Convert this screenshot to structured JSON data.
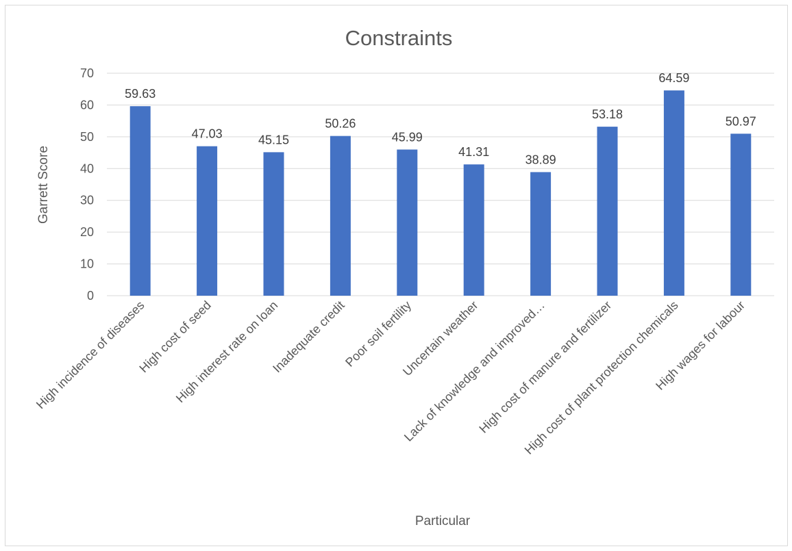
{
  "chart_data": {
    "type": "bar",
    "title": "Constraints",
    "xlabel": "Particular",
    "ylabel": "Garrett Score",
    "ylim": [
      0,
      70
    ],
    "yticks": [
      0,
      10,
      20,
      30,
      40,
      50,
      60,
      70
    ],
    "grid": true,
    "legend": "none",
    "bar_color": "#4472c4",
    "categories": [
      "High incidence of diseases",
      "High cost of seed",
      "High interest rate on loan",
      "Inadequate credit",
      "Poor soil fertility",
      "Uncertain weather",
      "Lack of knowledge and improved…",
      "High cost of manure and fertilizer",
      "High cost of plant protection chemicals",
      "High wages for labour"
    ],
    "values": [
      59.63,
      47.03,
      45.15,
      50.26,
      45.99,
      41.31,
      38.89,
      53.18,
      64.59,
      50.97
    ],
    "data_labels": [
      "59.63",
      "47.03",
      "45.15",
      "50.26",
      "45.99",
      "41.31",
      "38.89",
      "53.18",
      "64.59",
      "50.97"
    ]
  }
}
